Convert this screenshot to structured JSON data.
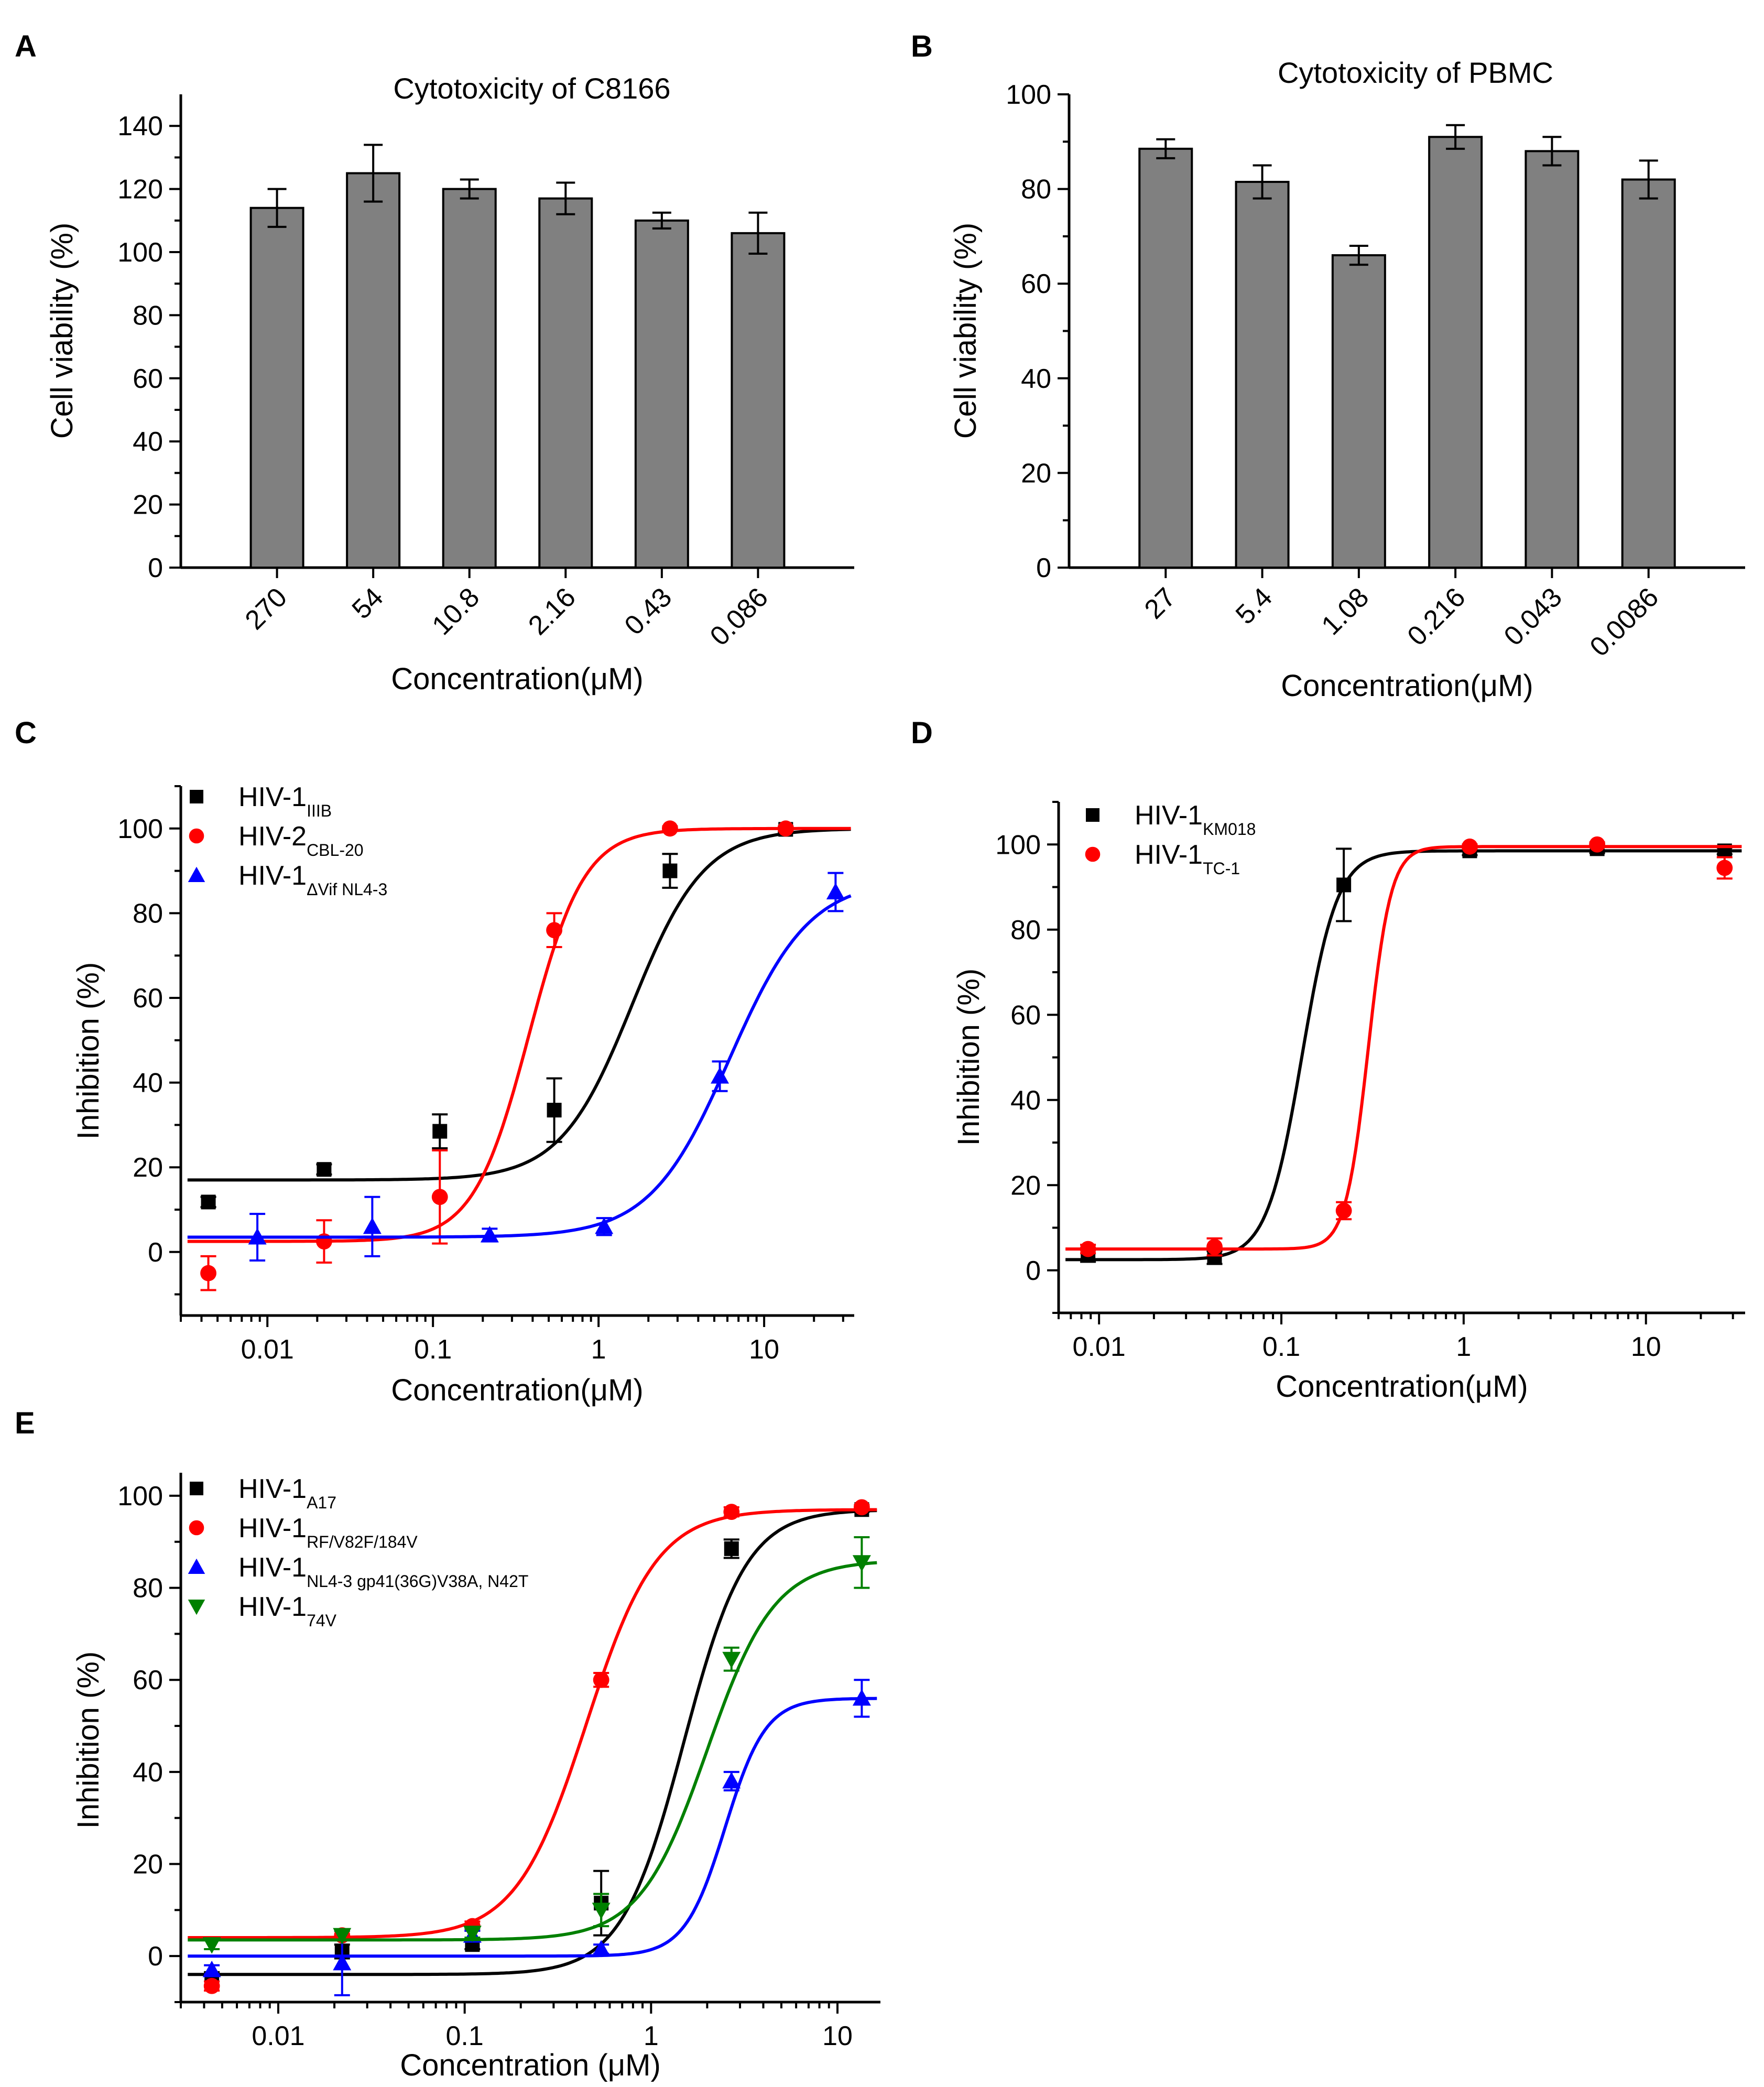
{
  "panels": [
    {
      "letter": "A",
      "type": "bar",
      "title": "Cytotoxicity of C8166",
      "xlabel": "Concentration(μM)",
      "ylabel": "Cell viability (%)",
      "ylim": [
        0,
        150
      ],
      "yticks": [
        0,
        20,
        40,
        60,
        80,
        100,
        120,
        140
      ],
      "categories": [
        "270",
        "54",
        "10.8",
        "2.16",
        "0.43",
        "0.086"
      ],
      "values": [
        114,
        125,
        120,
        117,
        110,
        106
      ],
      "errors": [
        6,
        9,
        3,
        5,
        2.5,
        6.5
      ]
    },
    {
      "letter": "B",
      "type": "bar",
      "title": "Cytotoxicity of PBMC",
      "xlabel": "Concentration(μM)",
      "ylabel": "Cell viability (%)",
      "ylim": [
        0,
        100
      ],
      "yticks": [
        0,
        20,
        40,
        60,
        80,
        100
      ],
      "categories": [
        "27",
        "5.4",
        "1.08",
        "0.216",
        "0.043",
        "0.0086"
      ],
      "values": [
        88.5,
        81.5,
        66,
        91,
        88,
        82
      ],
      "errors": [
        2,
        3.5,
        2,
        2.5,
        3,
        4
      ]
    },
    {
      "letter": "C",
      "type": "scatter",
      "xlabel": "Concentration(μM)",
      "ylabel": "Inhibition (%)",
      "xlim": [
        0.003,
        35
      ],
      "ylim": [
        -15,
        110
      ],
      "xticks": [
        0.01,
        0.1,
        1,
        10
      ],
      "xtick_labels": [
        "0.01",
        "0.1",
        "1",
        "10"
      ],
      "yticks": [
        0,
        20,
        40,
        60,
        80,
        100
      ],
      "series": [
        {
          "name": "HIV-1",
          "sub": "IIIB",
          "color": "#000000",
          "marker": "square",
          "x": [
            0.0044,
            0.022,
            0.11,
            0.54,
            2.7,
            13.5
          ],
          "y": [
            11.8,
            19.5,
            28.5,
            33.5,
            90,
            99.8
          ],
          "err": [
            1.2,
            1.2,
            4,
            7.5,
            4,
            0.6
          ],
          "fit": {
            "bottom": 17,
            "top": 100,
            "ec50": 1.6,
            "hill": 2.0
          }
        },
        {
          "name": "HIV-2",
          "sub": "CBL-20",
          "color": "#ff0000",
          "marker": "circle",
          "x": [
            0.0044,
            0.022,
            0.11,
            0.54,
            2.7,
            13.5
          ],
          "y": [
            -5,
            2.5,
            13,
            76,
            100,
            100
          ],
          "err": [
            4,
            5,
            11,
            4,
            0.5,
            0.5
          ],
          "fit": {
            "bottom": 2.5,
            "top": 100,
            "ec50": 0.38,
            "hill": 2.6
          }
        },
        {
          "name": "HIV-1",
          "sub": "ΔVif NL4-3",
          "color": "#0000ff",
          "marker": "triangle-up",
          "x": [
            0.0087,
            0.043,
            0.22,
            1.08,
            5.4,
            27
          ],
          "y": [
            3.5,
            6,
            4,
            6,
            41.5,
            85
          ],
          "err": [
            5.5,
            7,
            1.5,
            2,
            3.5,
            4.5
          ],
          "fit": {
            "bottom": 3.5,
            "top": 88,
            "ec50": 6.2,
            "hill": 1.8
          }
        }
      ]
    },
    {
      "letter": "D",
      "type": "scatter",
      "xlabel": "Concentration(μM)",
      "ylabel": "Inhibition (%)",
      "xlim": [
        0.006,
        35
      ],
      "ylim": [
        -10,
        110
      ],
      "xticks": [
        0.01,
        0.1,
        1,
        10
      ],
      "xtick_labels": [
        "0.01",
        "0.1",
        "1",
        "10"
      ],
      "yticks": [
        0,
        20,
        40,
        60,
        80,
        100
      ],
      "series": [
        {
          "name": "HIV-1",
          "sub": "KM018",
          "color": "#000000",
          "marker": "square",
          "x": [
            0.0087,
            0.043,
            0.22,
            1.08,
            5.4,
            27
          ],
          "y": [
            3.5,
            3,
            90.5,
            98.5,
            99,
            98.5
          ],
          "err": [
            1.5,
            1.5,
            8.5,
            1,
            1,
            0.8
          ],
          "fit": {
            "bottom": 2.5,
            "top": 98.5,
            "ec50": 0.13,
            "hill": 4.5
          }
        },
        {
          "name": "HIV-1",
          "sub": "TC-1",
          "color": "#ff0000",
          "marker": "circle",
          "x": [
            0.0087,
            0.043,
            0.22,
            1.08,
            5.4,
            27
          ],
          "y": [
            5,
            5.5,
            14,
            99.5,
            100,
            94.5
          ],
          "err": [
            1,
            2,
            2,
            0.5,
            0.5,
            2.5
          ],
          "fit": {
            "bottom": 5,
            "top": 99.5,
            "ec50": 0.3,
            "hill": 7
          }
        }
      ]
    },
    {
      "letter": "E",
      "type": "scatter",
      "xlabel": "Concentration (μM)",
      "ylabel": "Inhibition (%)",
      "xlim": [
        0.003,
        17
      ],
      "ylim": [
        -10,
        105
      ],
      "xticks": [
        0.01,
        0.1,
        1,
        10
      ],
      "xtick_labels": [
        "0.01",
        "0.1",
        "1",
        "10"
      ],
      "yticks": [
        0,
        20,
        40,
        60,
        80,
        100
      ],
      "series": [
        {
          "name": "HIV-1",
          "sub": "A17",
          "color": "#000000",
          "marker": "square",
          "x": [
            0.0044,
            0.022,
            0.11,
            0.54,
            2.7,
            13.5
          ],
          "y": [
            -5,
            1,
            2.5,
            11.5,
            88.5,
            97
          ],
          "err": [
            1.5,
            1.5,
            1,
            7,
            2,
            0.5
          ],
          "fit": {
            "bottom": -4,
            "top": 97,
            "ec50": 1.5,
            "hill": 2.6
          }
        },
        {
          "name": "HIV-1",
          "sub": "RF/V82F/184V",
          "color": "#ff0000",
          "marker": "circle",
          "x": [
            0.0044,
            0.022,
            0.11,
            0.54,
            2.7,
            13.5
          ],
          "y": [
            -6.5,
            4.5,
            6.5,
            60,
            96.5,
            97.5
          ],
          "err": [
            1,
            1,
            1,
            1.5,
            1,
            0.5
          ],
          "fit": {
            "bottom": 4,
            "top": 97,
            "ec50": 0.45,
            "hill": 2.3
          }
        },
        {
          "name": "HIV-1",
          "sub": "NL4-3 gp41(36G)V38A, N42T",
          "color": "#0000ff",
          "marker": "triangle-up",
          "x": [
            0.0044,
            0.022,
            0.11,
            0.54,
            2.7,
            13.5
          ],
          "y": [
            -3,
            -1.5,
            4.5,
            1.5,
            38,
            56
          ],
          "err": [
            1,
            7,
            1,
            1,
            2,
            4
          ],
          "fit": {
            "bottom": 0,
            "top": 56,
            "ec50": 2.5,
            "hill": 4
          }
        },
        {
          "name": "HIV-1",
          "sub": "74V",
          "color": "#008000",
          "marker": "triangle-down",
          "x": [
            0.0044,
            0.022,
            0.11,
            0.54,
            2.7,
            13.5
          ],
          "y": [
            2.5,
            4.5,
            5,
            10,
            64.5,
            85.5
          ],
          "err": [
            1,
            1,
            1,
            3.5,
            2.5,
            5.5
          ],
          "fit": {
            "bottom": 3.5,
            "top": 86,
            "ec50": 2.0,
            "hill": 2.4
          }
        }
      ]
    }
  ]
}
